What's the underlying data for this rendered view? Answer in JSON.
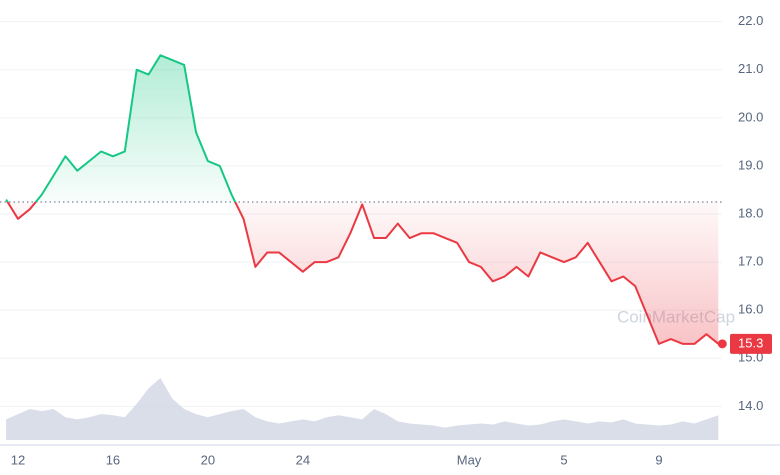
{
  "chart_data": {
    "type": "line",
    "categories": [
      null,
      "12",
      null,
      null,
      null,
      null,
      null,
      null,
      null,
      "16",
      null,
      null,
      null,
      null,
      null,
      null,
      null,
      "20",
      null,
      null,
      null,
      null,
      null,
      null,
      null,
      "24",
      null,
      null,
      null,
      null,
      null,
      null,
      null,
      null,
      null,
      null,
      null,
      null,
      null,
      "May",
      null,
      null,
      null,
      null,
      null,
      null,
      null,
      "5",
      null,
      null,
      null,
      null,
      null,
      null,
      null,
      "9",
      null,
      null,
      null,
      null,
      null
    ],
    "series": [
      {
        "name": "Price",
        "up_color": "#16c784",
        "down_color": "#ea3943",
        "values": [
          18.3,
          17.9,
          18.1,
          18.4,
          18.8,
          19.2,
          18.9,
          19.1,
          19.3,
          19.2,
          19.3,
          21.0,
          20.9,
          21.3,
          21.2,
          21.1,
          19.7,
          19.1,
          19.0,
          18.4,
          17.9,
          16.9,
          17.2,
          17.2,
          17.0,
          16.8,
          17.0,
          17.0,
          17.1,
          17.6,
          18.2,
          17.5,
          17.5,
          17.8,
          17.5,
          17.6,
          17.6,
          17.5,
          17.4,
          17.0,
          16.9,
          16.6,
          16.7,
          16.9,
          16.7,
          17.2,
          17.1,
          17.0,
          17.1,
          17.4,
          17.0,
          16.6,
          16.7,
          16.5,
          15.9,
          15.3,
          15.4,
          15.3,
          15.3,
          15.5,
          15.3
        ]
      }
    ],
    "volume": {
      "color": "#cfd6e4",
      "values": [
        20,
        25,
        30,
        28,
        30,
        22,
        20,
        22,
        25,
        24,
        22,
        35,
        50,
        60,
        40,
        30,
        25,
        22,
        25,
        28,
        30,
        22,
        18,
        16,
        18,
        20,
        18,
        22,
        24,
        22,
        20,
        30,
        25,
        18,
        16,
        15,
        14,
        12,
        14,
        15,
        16,
        15,
        18,
        16,
        14,
        15,
        18,
        20,
        18,
        16,
        18,
        17,
        20,
        16,
        15,
        14,
        15,
        18,
        16,
        20,
        24
      ]
    },
    "reference_value": 18.25,
    "ylim": [
      13.3,
      22.45
    ],
    "yticks": [
      {
        "value": 14,
        "label": "14.0"
      },
      {
        "value": 15,
        "label": "15.0"
      },
      {
        "value": 16,
        "label": "16.0"
      },
      {
        "value": 17,
        "label": "17.0"
      },
      {
        "value": 18,
        "label": "18.0"
      },
      {
        "value": 19,
        "label": "19.0"
      },
      {
        "value": 20,
        "label": "20.0"
      },
      {
        "value": 21,
        "label": "21.0"
      },
      {
        "value": 22,
        "label": "22.0"
      }
    ],
    "grid": true,
    "watermark": "CoinMarketCap"
  }
}
